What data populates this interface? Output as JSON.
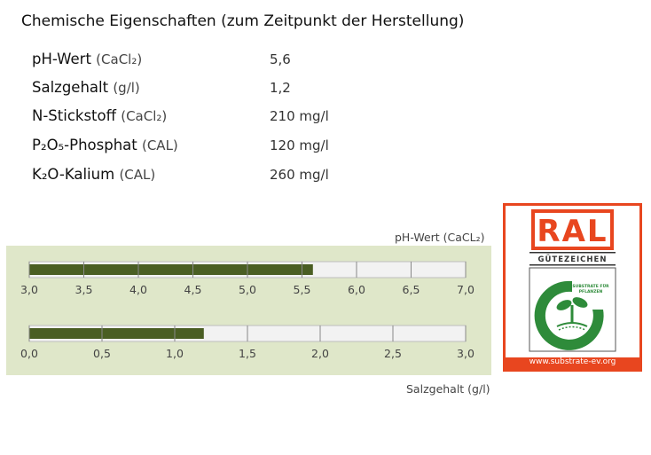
{
  "heading": "Chemische Eigenschaften (zum Zeitpunkt der Herstellung)",
  "properties": [
    {
      "name": "pH-Wert",
      "qualifier": "(CaCl₂)",
      "value": "5,6"
    },
    {
      "name": "Salzgehalt",
      "qualifier": "(g/l)",
      "value": "1,2"
    },
    {
      "name": "N-Stickstoff",
      "qualifier": "(CaCl₂)",
      "value": "210 mg/l"
    },
    {
      "name": "P₂O₅-Phosphat",
      "qualifier": "(CAL)",
      "value": "120 mg/l"
    },
    {
      "name": "K₂O-Kalium",
      "qualifier": "(CAL)",
      "value": "260 mg/l"
    }
  ],
  "gauges": {
    "ph": {
      "title": "pH-Wert (CaCL₂)",
      "value": 5.6,
      "min": 3.0,
      "max": 7.0,
      "ticks": [
        "3,0",
        "3,5",
        "4,0",
        "4,5",
        "5,0",
        "5,5",
        "6,0",
        "6,5",
        "7,0"
      ]
    },
    "salt": {
      "title": "Salzgehalt (g/l)",
      "value": 1.2,
      "min": 0.0,
      "max": 3.0,
      "ticks": [
        "0,0",
        "0,5",
        "1,0",
        "1,5",
        "2,0",
        "2,5",
        "3,0"
      ]
    }
  },
  "seal": {
    "ral_text": "RAL",
    "guete_text": "GÜTEZEICHEN",
    "circle_text_1": "SUBSTRATE FÜR",
    "circle_text_2": "PFLANZEN",
    "url": "www.substrate-ev.org"
  },
  "colors": {
    "bar_fill": "#4a5e23",
    "panel_bg": "#dfe7c9",
    "track_bg": "#f2f2f2",
    "seal_orange": "#e8461f",
    "seal_green": "#2e8b3a"
  }
}
